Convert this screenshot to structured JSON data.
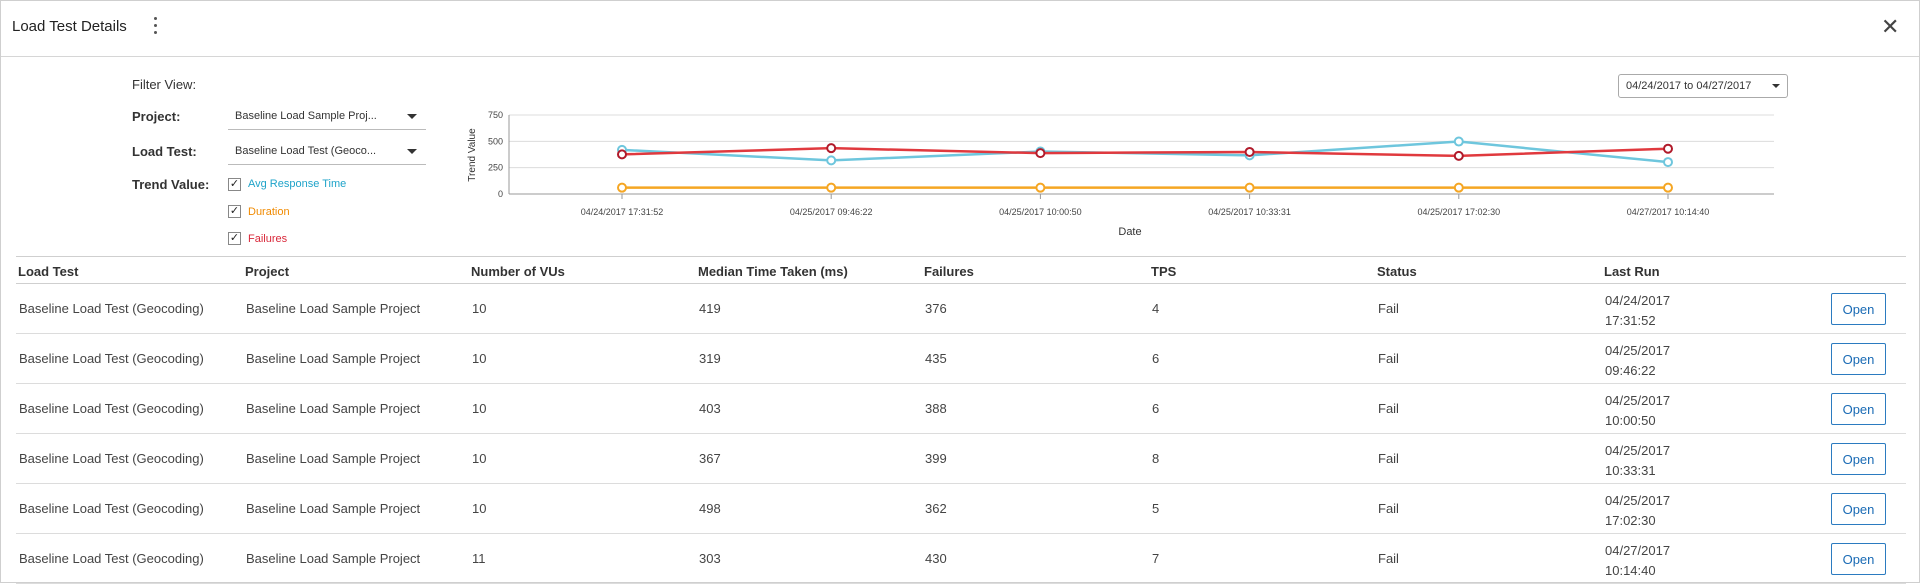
{
  "header": {
    "title": "Load Test Details"
  },
  "filters": {
    "heading": "Filter View:",
    "project_label": "Project:",
    "project_value": "Baseline Load Sample Proj...",
    "loadtest_label": "Load Test:",
    "loadtest_value": "Baseline Load Test (Geoco...",
    "trend_label": "Trend Value:",
    "trend_options": [
      {
        "label": "Avg Response Time",
        "checked": true,
        "color": "#1ea3c9"
      },
      {
        "label": "Duration",
        "checked": true,
        "color": "#f08a00"
      },
      {
        "label": "Failures",
        "checked": true,
        "color": "#d9283a"
      }
    ],
    "date_range": "04/24/2017 to 04/27/2017"
  },
  "chart_data": {
    "type": "line",
    "x": [
      "04/24/2017 17:31:52",
      "04/25/2017 09:46:22",
      "04/25/2017 10:00:50",
      "04/25/2017 10:33:31",
      "04/25/2017 17:02:30",
      "04/27/2017 10:14:40"
    ],
    "xlabel": "Date",
    "ylabel": "Trend Value",
    "ylim": [
      0,
      750
    ],
    "yticks": [
      0,
      250,
      500,
      750
    ],
    "grid": true,
    "series": [
      {
        "name": "Avg Response Time",
        "color": "#6ec6dd",
        "values": [
          419,
          319,
          403,
          367,
          498,
          303
        ]
      },
      {
        "name": "Duration",
        "color": "#f5a623",
        "values": [
          60,
          60,
          60,
          60,
          60,
          60
        ]
      },
      {
        "name": "Failures",
        "color": "#e0393e",
        "values": [
          376,
          435,
          388,
          399,
          362,
          430
        ]
      }
    ]
  },
  "table": {
    "headers": [
      "Load Test",
      "Project",
      "Number of VUs",
      "Median Time Taken (ms)",
      "Failures",
      "TPS",
      "Status",
      "Last Run"
    ],
    "open_label": "Open",
    "rows": [
      {
        "load_test": "Baseline Load Test (Geocoding)",
        "project": "Baseline Load Sample Project",
        "vus": "10",
        "median": "419",
        "failures": "376",
        "tps": "4",
        "status": "Fail",
        "date": "04/24/2017",
        "time": "17:31:52"
      },
      {
        "load_test": "Baseline Load Test (Geocoding)",
        "project": "Baseline Load Sample Project",
        "vus": "10",
        "median": "319",
        "failures": "435",
        "tps": "6",
        "status": "Fail",
        "date": "04/25/2017",
        "time": "09:46:22"
      },
      {
        "load_test": "Baseline Load Test (Geocoding)",
        "project": "Baseline Load Sample Project",
        "vus": "10",
        "median": "403",
        "failures": "388",
        "tps": "6",
        "status": "Fail",
        "date": "04/25/2017",
        "time": "10:00:50"
      },
      {
        "load_test": "Baseline Load Test (Geocoding)",
        "project": "Baseline Load Sample Project",
        "vus": "10",
        "median": "367",
        "failures": "399",
        "tps": "8",
        "status": "Fail",
        "date": "04/25/2017",
        "time": "10:33:31"
      },
      {
        "load_test": "Baseline Load Test (Geocoding)",
        "project": "Baseline Load Sample Project",
        "vus": "10",
        "median": "498",
        "failures": "362",
        "tps": "5",
        "status": "Fail",
        "date": "04/25/2017",
        "time": "17:02:30"
      },
      {
        "load_test": "Baseline Load Test (Geocoding)",
        "project": "Baseline Load Sample Project",
        "vus": "11",
        "median": "303",
        "failures": "430",
        "tps": "7",
        "status": "Fail",
        "date": "04/27/2017",
        "time": "10:14:40"
      }
    ]
  }
}
